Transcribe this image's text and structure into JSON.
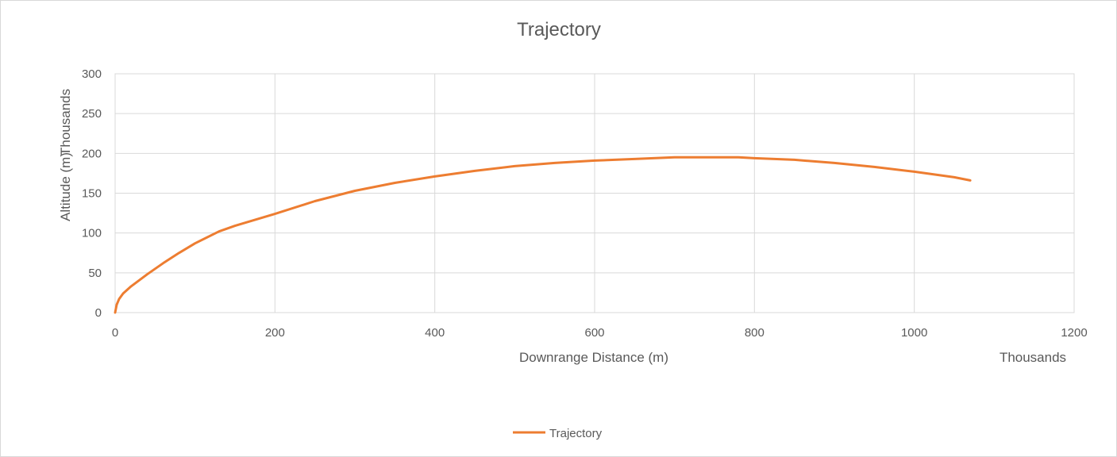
{
  "chart_data": {
    "type": "line",
    "title": "Trajectory",
    "xlabel": "Downrange Distance (m)",
    "ylabel": "Altitude (m)",
    "x_display_unit": "Thousands",
    "y_display_unit": "Thousands",
    "xlim": [
      0,
      1200
    ],
    "ylim": [
      0,
      300
    ],
    "x_ticks": [
      "0",
      "200",
      "400",
      "600",
      "800",
      "1000",
      "1200"
    ],
    "y_ticks": [
      "0",
      "50",
      "100",
      "150",
      "200",
      "250",
      "300"
    ],
    "grid": true,
    "legend": "bottom",
    "series": [
      {
        "name": "Trajectory",
        "color": "#ED7D31",
        "x": [
          0,
          2,
          5,
          10,
          20,
          40,
          60,
          80,
          100,
          130,
          150,
          180,
          200,
          250,
          300,
          350,
          400,
          450,
          500,
          550,
          600,
          650,
          700,
          750,
          780,
          800,
          850,
          900,
          950,
          1000,
          1050,
          1070
        ],
        "y": [
          0,
          10,
          17,
          24,
          33,
          48,
          62,
          75,
          87,
          102,
          109,
          118,
          124,
          140,
          153,
          163,
          171,
          178,
          184,
          188,
          191,
          193,
          195,
          195,
          195,
          194,
          192,
          188,
          183,
          177,
          170,
          166
        ]
      }
    ]
  }
}
